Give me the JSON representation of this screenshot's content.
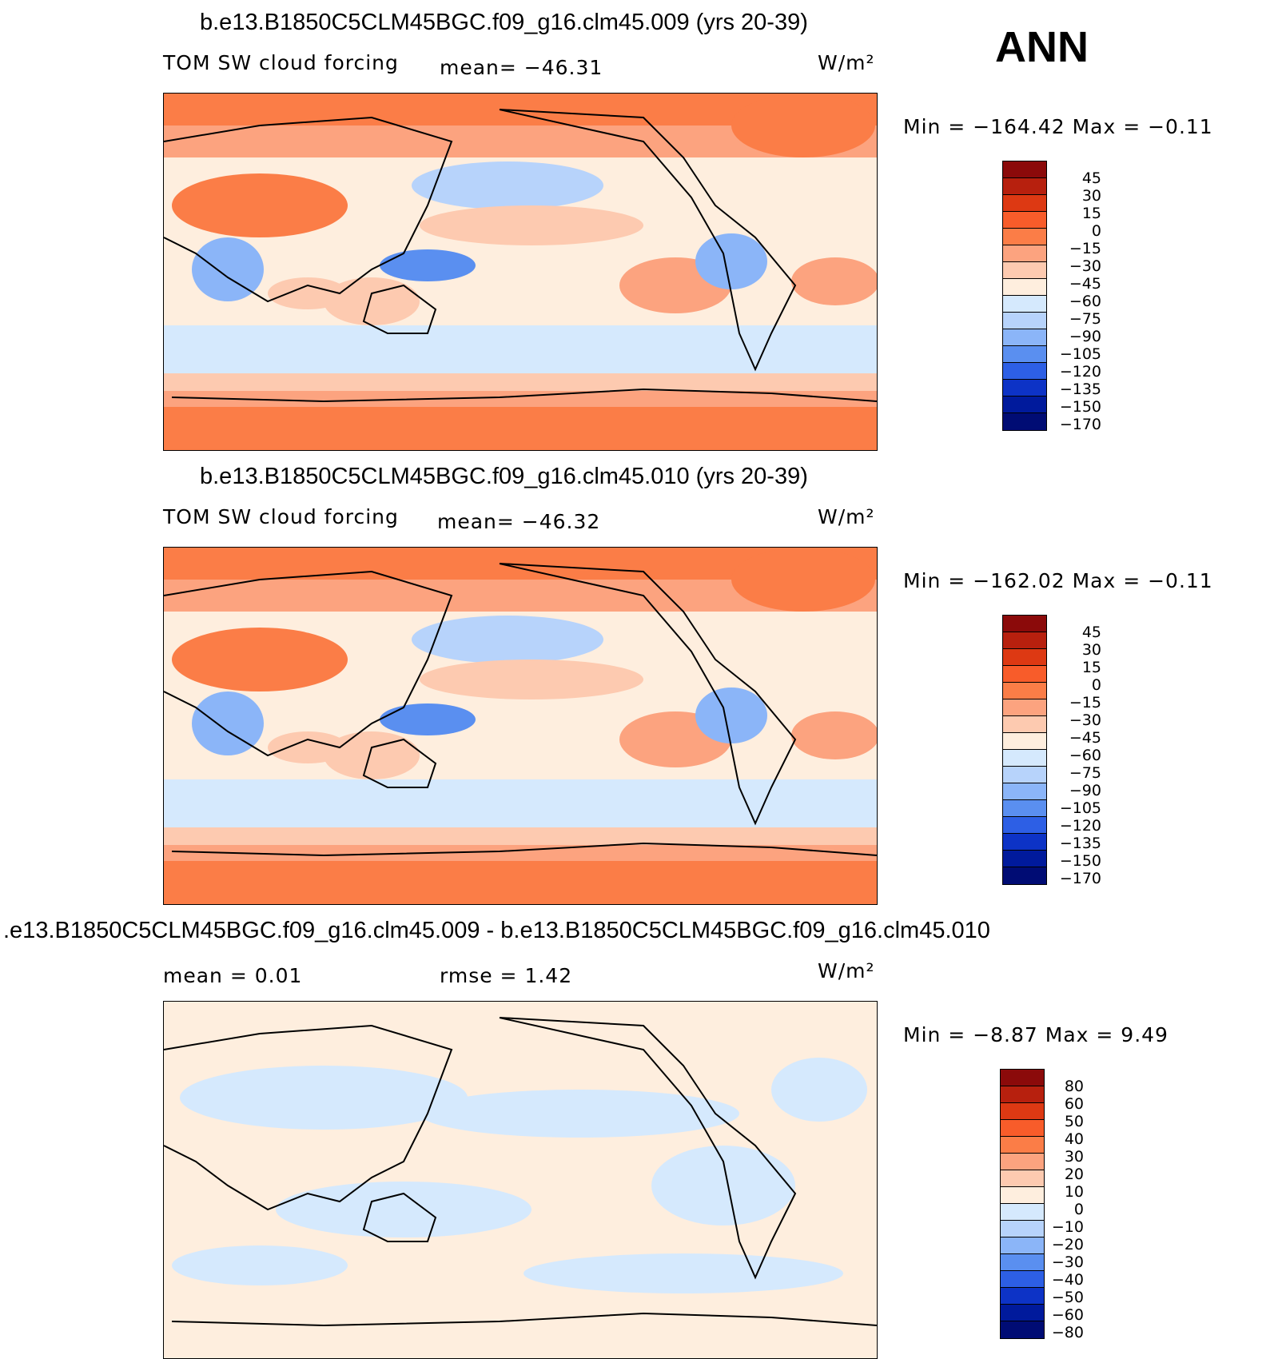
{
  "season": "ANN",
  "unit_label": "W/m²",
  "panels": [
    {
      "title": "b.e13.B1850C5CLM45BGC.f09_g16.clm45.009 (yrs 20-39)",
      "variable": "TOM SW cloud forcing",
      "stat": "mean= −46.31",
      "minmax": "Min = −164.42 Max =  −0.11",
      "colorbar_labels": [
        "45",
        "30",
        "15",
        "0",
        "−15",
        "−30",
        "−45",
        "−60",
        "−75",
        "−90",
        "−105",
        "−120",
        "−135",
        "−150",
        "−170"
      ]
    },
    {
      "title": "b.e13.B1850C5CLM45BGC.f09_g16.clm45.010 (yrs 20-39)",
      "variable": "TOM SW cloud forcing",
      "stat": "mean= −46.32",
      "minmax": "Min = −162.02 Max =  −0.11",
      "colorbar_labels": [
        "45",
        "30",
        "15",
        "0",
        "−15",
        "−30",
        "−45",
        "−60",
        "−75",
        "−90",
        "−105",
        "−120",
        "−135",
        "−150",
        "−170"
      ]
    },
    {
      "title": ".e13.B1850C5CLM45BGC.f09_g16.clm45.009 - b.e13.B1850C5CLM45BGC.f09_g16.clm45.010",
      "stat_mean": "mean =   0.01",
      "stat_rmse": "rmse =   1.42",
      "minmax": "Min =  −8.87 Max =   9.49",
      "colorbar_labels": [
        "80",
        "60",
        "50",
        "40",
        "30",
        "20",
        "10",
        "0",
        "−10",
        "−20",
        "−30",
        "−40",
        "−50",
        "−60",
        "−80"
      ]
    }
  ],
  "colors": {
    "scale": [
      "#8b0a0a",
      "#b7200e",
      "#dd3913",
      "#f85c2a",
      "#fb7d47",
      "#fca37f",
      "#fdcab0",
      "#feeede",
      "#d5e9fd",
      "#b7d3fb",
      "#8bb5f8",
      "#5a8ff0",
      "#2d5fe5",
      "#0d33c6",
      "#001a9c",
      "#000c74"
    ],
    "land_outline": "#000000"
  }
}
